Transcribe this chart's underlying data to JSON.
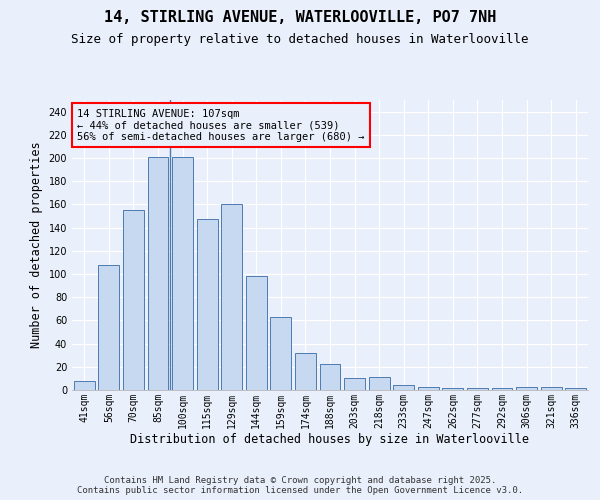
{
  "title": "14, STIRLING AVENUE, WATERLOOVILLE, PO7 7NH",
  "subtitle": "Size of property relative to detached houses in Waterlooville",
  "xlabel": "Distribution of detached houses by size in Waterlooville",
  "ylabel": "Number of detached properties",
  "footer1": "Contains HM Land Registry data © Crown copyright and database right 2025.",
  "footer2": "Contains public sector information licensed under the Open Government Licence v3.0.",
  "categories": [
    "41sqm",
    "56sqm",
    "70sqm",
    "85sqm",
    "100sqm",
    "115sqm",
    "129sqm",
    "144sqm",
    "159sqm",
    "174sqm",
    "188sqm",
    "203sqm",
    "218sqm",
    "233sqm",
    "247sqm",
    "262sqm",
    "277sqm",
    "292sqm",
    "306sqm",
    "321sqm",
    "336sqm"
  ],
  "values": [
    8,
    108,
    155,
    201,
    201,
    147,
    160,
    98,
    63,
    32,
    22,
    10,
    11,
    4,
    3,
    2,
    2,
    2,
    3,
    3,
    2
  ],
  "bar_color": "#c7d9f0",
  "bar_edge_color": "#4c7ab0",
  "property_bin_index": 4,
  "annotation_text1": "14 STIRLING AVENUE: 107sqm",
  "annotation_text2": "← 44% of detached houses are smaller (539)",
  "annotation_text3": "56% of semi-detached houses are larger (680) →",
  "ylim": [
    0,
    250
  ],
  "yticks": [
    0,
    20,
    40,
    60,
    80,
    100,
    120,
    140,
    160,
    180,
    200,
    220,
    240
  ],
  "bg_color": "#eaf0fb",
  "grid_color": "#ffffff",
  "title_fontsize": 11,
  "subtitle_fontsize": 9,
  "axis_label_fontsize": 8.5,
  "tick_fontsize": 7,
  "annotation_fontsize": 7.5,
  "footer_fontsize": 6.5
}
